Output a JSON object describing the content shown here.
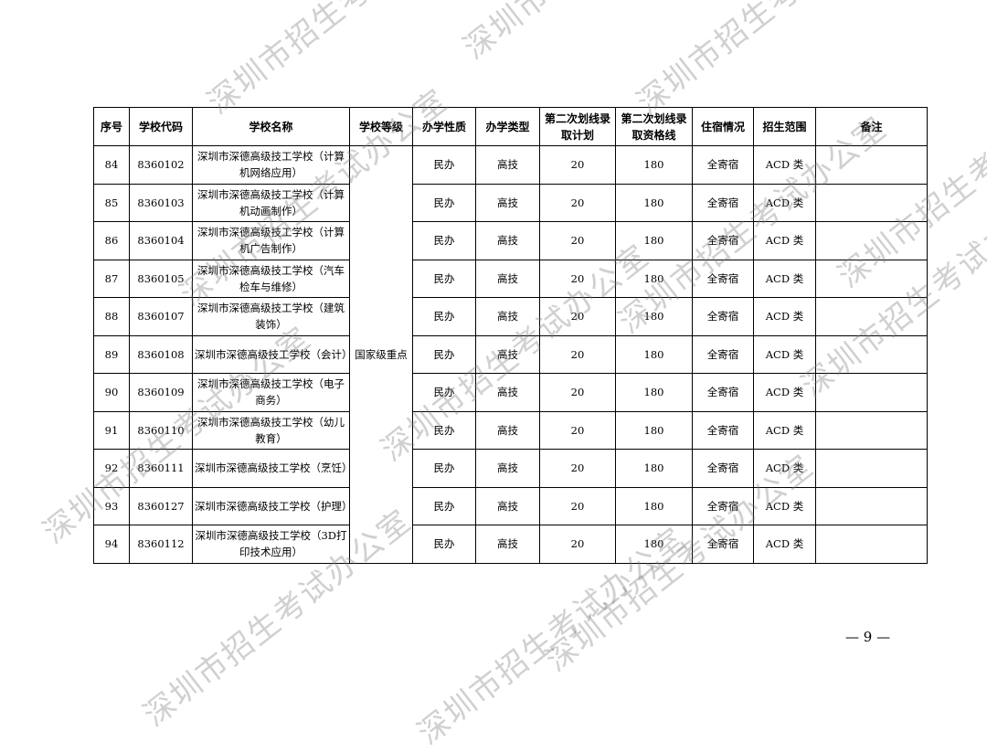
{
  "headers": [
    "序号",
    "学校代码",
    "学校名称",
    "学校等级",
    "办学性质",
    "办学类型",
    "第二次划线录取计划",
    "第二次划线录取资格线",
    "住宿情况",
    "招生范围",
    "备注"
  ],
  "school_level": "国家级重点",
  "rows": [
    {
      "no": "84",
      "code": "8360102",
      "name": "深圳市深德高级技工学校（计算机网络应用）",
      "nature": "民办",
      "type": "高技",
      "plan": "20",
      "score": "180",
      "lodging": "全寄宿",
      "scope": "ACD 类",
      "note": ""
    },
    {
      "no": "85",
      "code": "8360103",
      "name": "深圳市深德高级技工学校（计算机动画制作）",
      "nature": "民办",
      "type": "高技",
      "plan": "20",
      "score": "180",
      "lodging": "全寄宿",
      "scope": "ACD 类",
      "note": ""
    },
    {
      "no": "86",
      "code": "8360104",
      "name": "深圳市深德高级技工学校（计算机广告制作）",
      "nature": "民办",
      "type": "高技",
      "plan": "20",
      "score": "180",
      "lodging": "全寄宿",
      "scope": "ACD 类",
      "note": ""
    },
    {
      "no": "87",
      "code": "8360105",
      "name": "深圳市深德高级技工学校（汽车检车与维修）",
      "nature": "民办",
      "type": "高技",
      "plan": "20",
      "score": "180",
      "lodging": "全寄宿",
      "scope": "ACD 类",
      "note": ""
    },
    {
      "no": "88",
      "code": "8360107",
      "name": "深圳市深德高级技工学校（建筑装饰）",
      "nature": "民办",
      "type": "高技",
      "plan": "20",
      "score": "180",
      "lodging": "全寄宿",
      "scope": "ACD 类",
      "note": ""
    },
    {
      "no": "89",
      "code": "8360108",
      "name": "深圳市深德高级技工学校（会计）",
      "nature": "民办",
      "type": "高技",
      "plan": "20",
      "score": "180",
      "lodging": "全寄宿",
      "scope": "ACD 类",
      "note": ""
    },
    {
      "no": "90",
      "code": "8360109",
      "name": "深圳市深德高级技工学校（电子商务）",
      "nature": "民办",
      "type": "高技",
      "plan": "20",
      "score": "180",
      "lodging": "全寄宿",
      "scope": "ACD 类",
      "note": ""
    },
    {
      "no": "91",
      "code": "8360110",
      "name": "深圳市深德高级技工学校（幼儿教育）",
      "nature": "民办",
      "type": "高技",
      "plan": "20",
      "score": "180",
      "lodging": "全寄宿",
      "scope": "ACD 类",
      "note": ""
    },
    {
      "no": "92",
      "code": "8360111",
      "name": "深圳市深德高级技工学校（烹饪）",
      "nature": "民办",
      "type": "高技",
      "plan": "20",
      "score": "180",
      "lodging": "全寄宿",
      "scope": "ACD 类",
      "note": ""
    },
    {
      "no": "93",
      "code": "8360127",
      "name": "深圳市深德高级技工学校（护理）",
      "nature": "民办",
      "type": "高技",
      "plan": "20",
      "score": "180",
      "lodging": "全寄宿",
      "scope": "ACD 类",
      "note": ""
    },
    {
      "no": "94",
      "code": "8360112",
      "name": "深圳市深德高级技工学校（3D打印技术应用）",
      "nature": "民办",
      "type": "高技",
      "plan": "20",
      "score": "180",
      "lodging": "全寄宿",
      "scope": "ACD 类",
      "note": ""
    }
  ],
  "page_number": "— 9 —",
  "watermark": "深圳市招生考试办公室"
}
